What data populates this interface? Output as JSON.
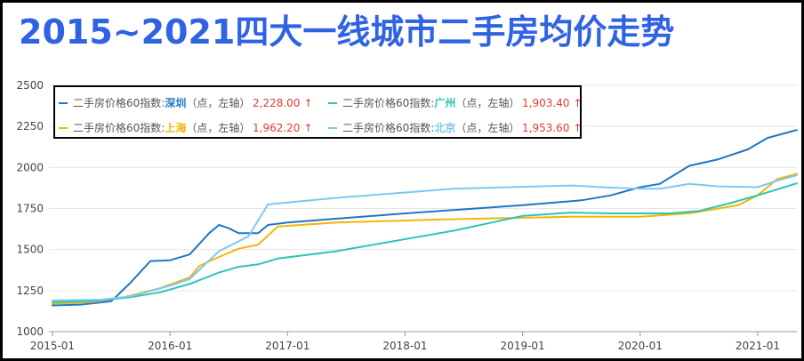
{
  "title": "2015~2021四大一线城市二手房均价走势",
  "legend": {
    "prefix": "二手房价格60指数:",
    "suffix": "（点，左轴）",
    "arrow": "↑"
  },
  "colors": {
    "title": "#2f63e4",
    "shenzhen": "#1f77c4",
    "guangzhou": "#2ec4b6",
    "shanghai": "#f2b705",
    "beijing": "#7cc8f2",
    "value": "#e03c31",
    "grid": "#e6e6e6"
  },
  "chart_data": {
    "type": "line",
    "x_ticks": [
      "2015-01",
      "2016-01",
      "2017-01",
      "2018-01",
      "2019-01",
      "2020-01",
      "2021-01"
    ],
    "xlim": [
      "2015-01",
      "2021-05"
    ],
    "ylim": [
      1000,
      2500
    ],
    "y_ticks": [
      1000,
      1250,
      1500,
      1750,
      2000,
      2250,
      2500
    ],
    "grid": "horizontal",
    "legend_position": "top-left",
    "series": [
      {
        "name": "深圳",
        "key": "shenzhen",
        "latest_value": "2,228.00",
        "points": [
          [
            "2015-01",
            1160
          ],
          [
            "2015-04",
            1165
          ],
          [
            "2015-07",
            1185
          ],
          [
            "2015-09",
            1300
          ],
          [
            "2015-11",
            1430
          ],
          [
            "2016-01",
            1435
          ],
          [
            "2016-03",
            1470
          ],
          [
            "2016-05",
            1600
          ],
          [
            "2016-06",
            1650
          ],
          [
            "2016-07",
            1630
          ],
          [
            "2016-08",
            1600
          ],
          [
            "2016-10",
            1600
          ],
          [
            "2016-11",
            1650
          ],
          [
            "2017-01",
            1665
          ],
          [
            "2018-01",
            1720
          ],
          [
            "2019-01",
            1770
          ],
          [
            "2019-07",
            1800
          ],
          [
            "2019-10",
            1830
          ],
          [
            "2020-01",
            1880
          ],
          [
            "2020-03",
            1900
          ],
          [
            "2020-06",
            2010
          ],
          [
            "2020-09",
            2050
          ],
          [
            "2020-12",
            2110
          ],
          [
            "2021-02",
            2180
          ],
          [
            "2021-05",
            2228
          ]
        ]
      },
      {
        "name": "上海",
        "key": "shanghai",
        "latest_value": "1,962.20",
        "points": [
          [
            "2015-01",
            1170
          ],
          [
            "2015-05",
            1180
          ],
          [
            "2015-08",
            1205
          ],
          [
            "2015-12",
            1265
          ],
          [
            "2016-03",
            1330
          ],
          [
            "2016-04",
            1400
          ],
          [
            "2016-06",
            1455
          ],
          [
            "2016-08",
            1505
          ],
          [
            "2016-10",
            1530
          ],
          [
            "2016-12",
            1640
          ],
          [
            "2017-06",
            1665
          ],
          [
            "2018-06",
            1685
          ],
          [
            "2019-06",
            1700
          ],
          [
            "2020-01",
            1700
          ],
          [
            "2020-06",
            1720
          ],
          [
            "2020-11",
            1770
          ],
          [
            "2021-01",
            1830
          ],
          [
            "2021-03",
            1930
          ],
          [
            "2021-05",
            1962
          ]
        ]
      },
      {
        "name": "广州",
        "key": "guangzhou",
        "latest_value": "1,903.40",
        "points": [
          [
            "2015-01",
            1180
          ],
          [
            "2015-05",
            1185
          ],
          [
            "2015-09",
            1210
          ],
          [
            "2015-12",
            1240
          ],
          [
            "2016-03",
            1290
          ],
          [
            "2016-06",
            1360
          ],
          [
            "2016-08",
            1395
          ],
          [
            "2016-10",
            1410
          ],
          [
            "2016-12",
            1445
          ],
          [
            "2017-06",
            1490
          ],
          [
            "2018-06",
            1615
          ],
          [
            "2019-01",
            1705
          ],
          [
            "2019-06",
            1725
          ],
          [
            "2019-10",
            1720
          ],
          [
            "2020-01",
            1720
          ],
          [
            "2020-04",
            1720
          ],
          [
            "2020-07",
            1735
          ],
          [
            "2020-10",
            1780
          ],
          [
            "2021-01",
            1830
          ],
          [
            "2021-05",
            1903
          ]
        ]
      },
      {
        "name": "北京",
        "key": "beijing",
        "latest_value": "1,953.60",
        "points": [
          [
            "2015-01",
            1190
          ],
          [
            "2015-06",
            1195
          ],
          [
            "2015-09",
            1215
          ],
          [
            "2016-01",
            1280
          ],
          [
            "2016-03",
            1320
          ],
          [
            "2016-06",
            1490
          ],
          [
            "2016-09",
            1580
          ],
          [
            "2016-11",
            1775
          ],
          [
            "2017-06",
            1815
          ],
          [
            "2018-06",
            1870
          ],
          [
            "2019-06",
            1890
          ],
          [
            "2019-09",
            1880
          ],
          [
            "2020-01",
            1870
          ],
          [
            "2020-03",
            1870
          ],
          [
            "2020-06",
            1900
          ],
          [
            "2020-09",
            1885
          ],
          [
            "2021-01",
            1880
          ],
          [
            "2021-03",
            1920
          ],
          [
            "2021-05",
            1953
          ]
        ]
      }
    ]
  }
}
